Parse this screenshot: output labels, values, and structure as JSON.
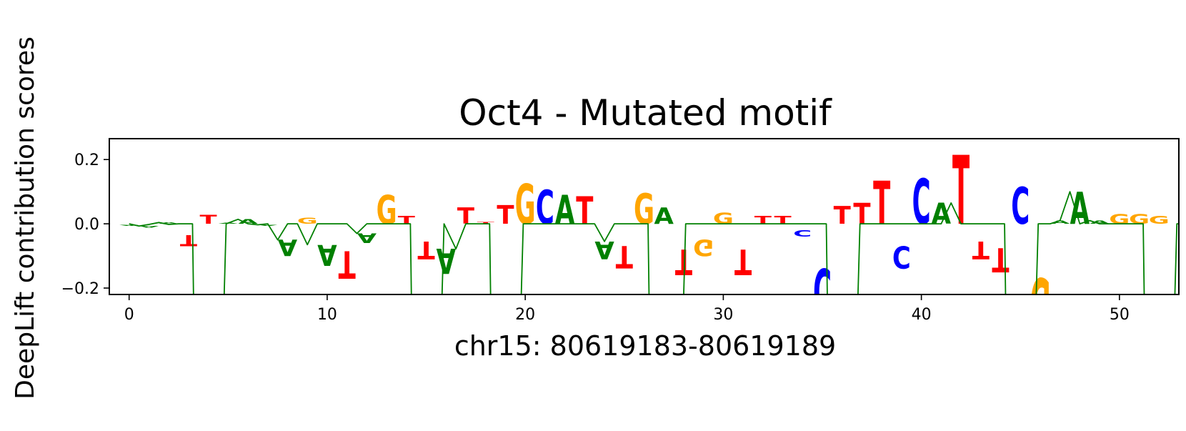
{
  "chart_data": {
    "type": "sequence-logo",
    "title": "Oct4 - Mutated motif",
    "xlabel": "chr15: 80619183-80619189",
    "ylabel": "DeepLift contribution scores",
    "xlim": [
      -1,
      53
    ],
    "ylim": [
      -0.22,
      0.265
    ],
    "xticks": [
      0,
      10,
      20,
      30,
      40,
      50
    ],
    "yticks": [
      -0.2,
      0.0,
      0.2
    ],
    "ytick_labels": [
      "−0.2",
      "0.0",
      "0.2"
    ],
    "base_colors": {
      "A": "#008000",
      "C": "#0000ff",
      "G": "#ffa500",
      "T": "#ff0000"
    },
    "line_color": "#008000",
    "positions": [
      {
        "pos": 0,
        "base": "A",
        "score": -0.003
      },
      {
        "pos": 1,
        "base": "A",
        "score": -0.006
      },
      {
        "pos": 2,
        "base": "A",
        "score": 0.004
      },
      {
        "pos": 3,
        "base": "T",
        "score": -0.035
      },
      {
        "pos": 4,
        "base": "T",
        "score": 0.028
      },
      {
        "pos": 5,
        "base": "A",
        "score": 0.003
      },
      {
        "pos": 6,
        "base": "A",
        "score": 0.014
      },
      {
        "pos": 7,
        "base": "A",
        "score": -0.003
      },
      {
        "pos": 8,
        "base": "A",
        "score": -0.05
      },
      {
        "pos": 9,
        "base": "G",
        "score": 0.018
      },
      {
        "pos": 10,
        "base": "A",
        "score": -0.065
      },
      {
        "pos": 11,
        "base": "T",
        "score": -0.085
      },
      {
        "pos": 12,
        "base": "A",
        "score": -0.03
      },
      {
        "pos": 13,
        "base": "G",
        "score": 0.09
      },
      {
        "pos": 14,
        "base": "T",
        "score": 0.025
      },
      {
        "pos": 15,
        "base": "T",
        "score": -0.055
      },
      {
        "pos": 16,
        "base": "A",
        "score": -0.078
      },
      {
        "pos": 17,
        "base": "T",
        "score": 0.05
      },
      {
        "pos": 18,
        "base": "T",
        "score": 0.005
      },
      {
        "pos": 19,
        "base": "T",
        "score": 0.058
      },
      {
        "pos": 20,
        "base": "G",
        "score": 0.125
      },
      {
        "pos": 21,
        "base": "C",
        "score": 0.105
      },
      {
        "pos": 22,
        "base": "A",
        "score": 0.09
      },
      {
        "pos": 23,
        "base": "T",
        "score": 0.085
      },
      {
        "pos": 24,
        "base": "A",
        "score": -0.055
      },
      {
        "pos": 25,
        "base": "T",
        "score": -0.07
      },
      {
        "pos": 26,
        "base": "G",
        "score": 0.095
      },
      {
        "pos": 27,
        "base": "A",
        "score": 0.05
      },
      {
        "pos": 28,
        "base": "T",
        "score": -0.08
      },
      {
        "pos": 29,
        "base": "G",
        "score": -0.05
      },
      {
        "pos": 30,
        "base": "G",
        "score": 0.035
      },
      {
        "pos": 31,
        "base": "T",
        "score": -0.08
      },
      {
        "pos": 32,
        "base": "T",
        "score": 0.025
      },
      {
        "pos": 33,
        "base": "T",
        "score": 0.025
      },
      {
        "pos": 34,
        "base": "C",
        "score": -0.02
      },
      {
        "pos": 35,
        "base": "C",
        "score": -0.14
      },
      {
        "pos": 36,
        "base": "T",
        "score": 0.055
      },
      {
        "pos": 37,
        "base": "T",
        "score": 0.065
      },
      {
        "pos": 38,
        "base": "T",
        "score": 0.135
      },
      {
        "pos": 39,
        "base": "C",
        "score": -0.07
      },
      {
        "pos": 40,
        "base": "C",
        "score": 0.14
      },
      {
        "pos": 41,
        "base": "A",
        "score": 0.065
      },
      {
        "pos": 42,
        "base": "T",
        "score": 0.215
      },
      {
        "pos": 43,
        "base": "T",
        "score": -0.055
      },
      {
        "pos": 44,
        "base": "T",
        "score": -0.075
      },
      {
        "pos": 45,
        "base": "C",
        "score": 0.115
      },
      {
        "pos": 46,
        "base": "G",
        "score": -0.17
      },
      {
        "pos": 47,
        "base": "A",
        "score": 0.01
      },
      {
        "pos": 48,
        "base": "A",
        "score": 0.1
      },
      {
        "pos": 49,
        "base": "A",
        "score": 0.01
      },
      {
        "pos": 50,
        "base": "G",
        "score": 0.03
      },
      {
        "pos": 51,
        "base": "G",
        "score": 0.03
      },
      {
        "pos": 52,
        "base": "G",
        "score": 0.025
      }
    ],
    "trace": {
      "x": [
        0,
        0.5,
        1,
        1.5,
        2,
        2.5,
        3,
        3.2,
        3.25,
        4.8,
        4.9,
        5.5,
        6,
        6.5,
        7,
        7.5,
        8,
        8.5,
        9,
        9.5,
        10,
        10.5,
        11,
        11.5,
        12,
        12.5,
        13,
        13.5,
        14,
        14.2,
        14.25,
        15.8,
        15.9,
        16.5,
        17,
        17.5,
        18,
        18.2,
        18.25,
        19.8,
        19.9,
        20.5,
        21,
        21.5,
        22,
        22.5,
        23,
        23.5,
        24,
        24.5,
        25,
        25.5,
        26,
        26.2,
        26.25,
        28.0,
        28.1,
        28.5,
        29,
        29.5,
        30,
        30.5,
        31,
        31.5,
        32,
        32.5,
        33,
        33.5,
        34,
        34.5,
        35,
        35.2,
        35.25,
        36.8,
        36.9,
        37.5,
        38,
        38.5,
        39,
        39.5,
        40,
        40.5,
        41,
        41.5,
        42,
        42.5,
        43,
        43.5,
        44,
        44.2,
        44.25,
        45.8,
        45.9,
        46.5,
        47,
        47.5,
        48,
        48.5,
        49,
        49.5,
        50,
        50.5,
        51,
        51.2,
        51.25,
        52.8,
        52.9,
        53
      ],
      "y": [
        0,
        -0.007,
        -0.002,
        0.004,
        -0.002,
        0,
        0,
        0,
        -0.22,
        -0.22,
        0,
        0.014,
        0,
        -0.003,
        0,
        -0.05,
        0,
        0,
        -0.065,
        0,
        0,
        0,
        0,
        -0.03,
        0,
        0,
        0,
        0,
        0,
        0,
        -0.22,
        -0.22,
        0,
        -0.078,
        0,
        0,
        0,
        0,
        -0.22,
        -0.22,
        0,
        0,
        0,
        0,
        0,
        0,
        0,
        0,
        -0.055,
        0,
        0,
        0,
        0,
        0,
        -0.22,
        -0.22,
        0,
        0,
        0,
        0,
        0,
        0,
        0,
        0,
        0,
        0,
        0,
        0,
        0,
        0,
        0,
        0,
        -0.22,
        -0.22,
        0,
        0,
        0,
        0,
        0,
        0,
        0,
        0,
        0,
        0.065,
        0,
        0,
        0,
        0,
        0,
        0,
        -0.22,
        -0.22,
        0,
        0,
        0.01,
        0.1,
        0,
        0.01,
        0,
        0,
        0,
        0,
        0,
        0,
        -0.22,
        -0.22,
        0,
        0
      ]
    }
  }
}
